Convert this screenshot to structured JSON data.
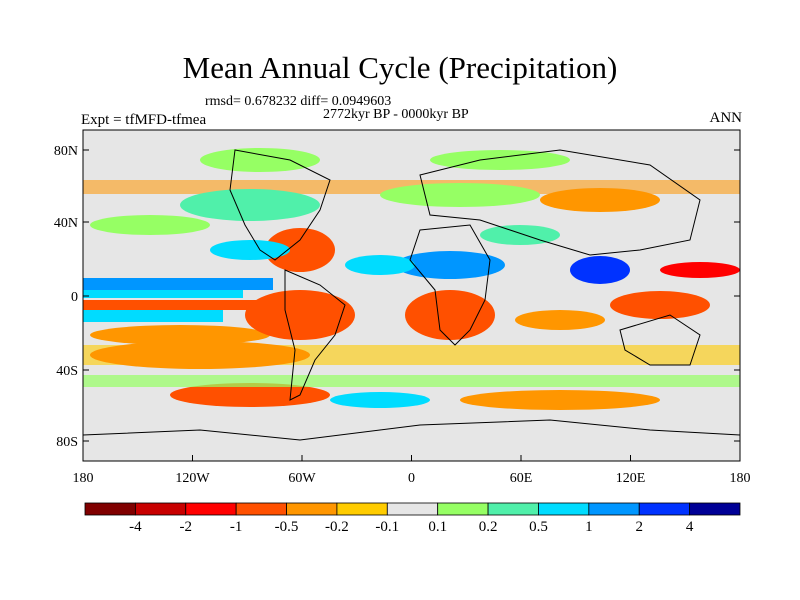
{
  "title": "Mean Annual Cycle (Precipitation)",
  "stats_line": "rmsd= 0.678232 diff= 0.0949603",
  "period_line": "2772kyr BP - 0000kyr BP",
  "left_label": "Expt = tfMFD-tfmea",
  "right_label": "ANN",
  "y_ticks": [
    "80N",
    "40N",
    "0",
    "40S",
    "80S"
  ],
  "x_ticks": [
    "180",
    "120W",
    "60W",
    "0",
    "60E",
    "120E",
    "180"
  ],
  "colorbar": {
    "labels": [
      "-4",
      "-2",
      "-1",
      "-0.5",
      "-0.2",
      "-0.1",
      "0.1",
      "0.2",
      "0.5",
      "1",
      "2",
      "4"
    ],
    "colors": [
      "#800000",
      "#c80000",
      "#ff0000",
      "#ff5000",
      "#ff9600",
      "#ffcc00",
      "#e6e6e6",
      "#96ff64",
      "#50f0aa",
      "#00dcff",
      "#0096ff",
      "#0032ff",
      "#000096"
    ]
  }
}
